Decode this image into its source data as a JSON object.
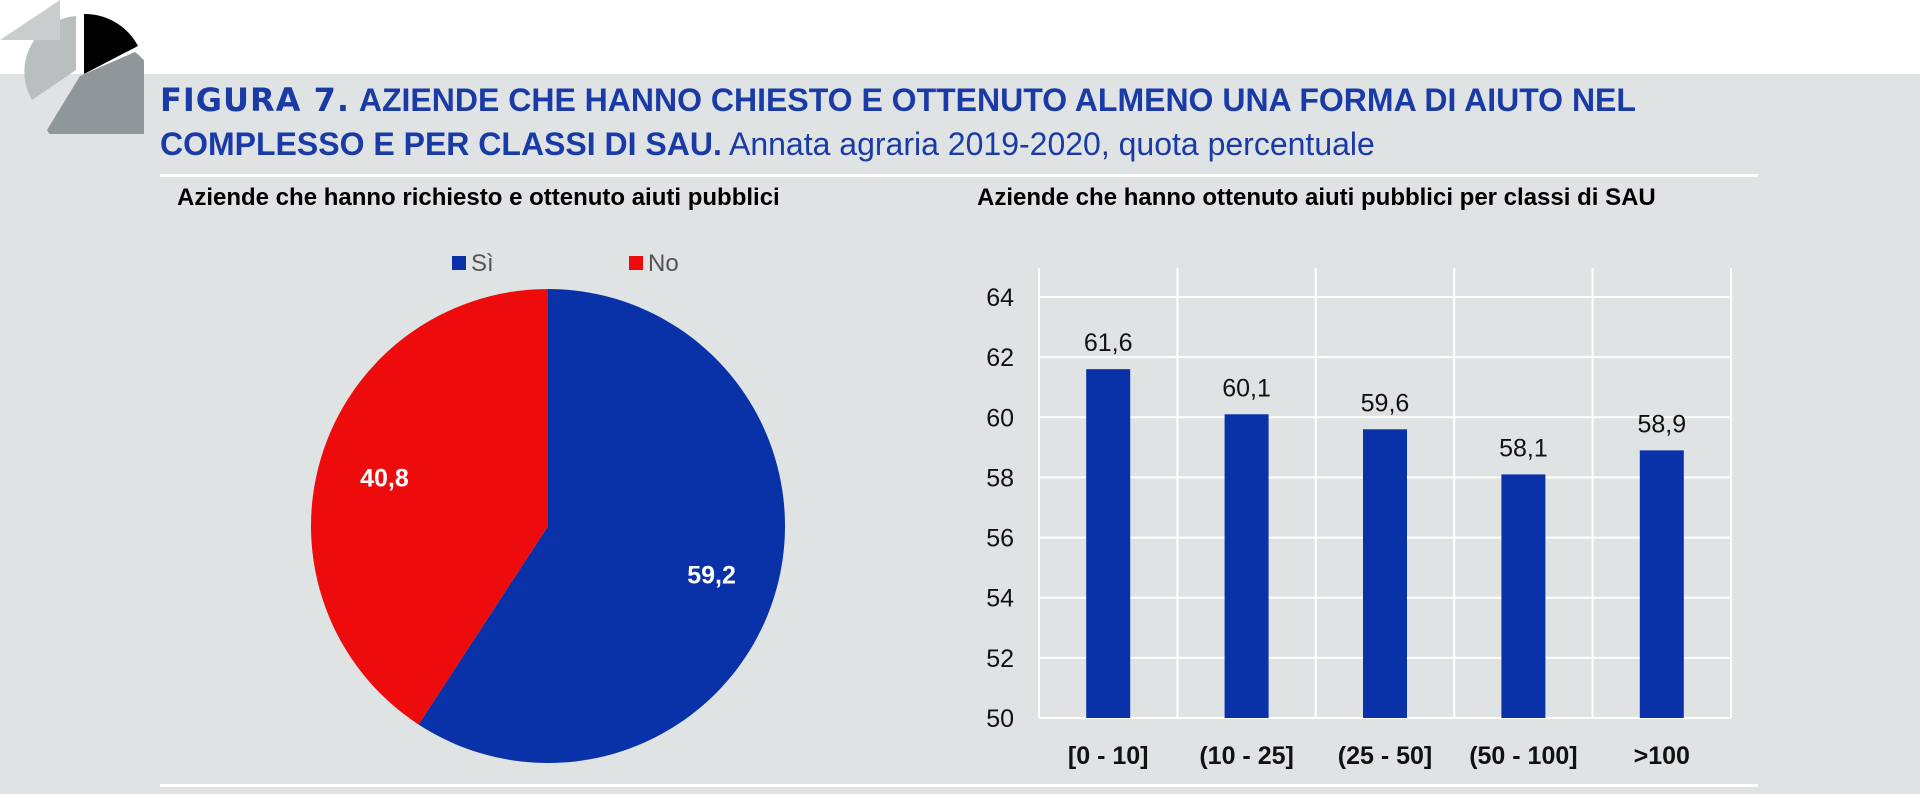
{
  "figure": {
    "label": "FIGURA 7.",
    "title": "AZIENDE CHE HANNO CHIESTO E OTTENUTO ALMENO UNA FORMA DI AIUTO NEL COMPLESSO E PER CLASSI DI SAU",
    "subtitle": "Annata agraria 2019-2020, quota percentuale"
  },
  "colors": {
    "blue": "#0a32a8",
    "red": "#ee0b0b",
    "title_blue": "#1a3aa6",
    "background": "#dfe3e4"
  },
  "chart_data": [
    {
      "type": "pie",
      "title": "Aziende che hanno richiesto e ottenuto aiuti pubblici",
      "legend_position": "top",
      "slices": [
        {
          "name": "Sì",
          "value": 59.2,
          "label": "59,2",
          "color": "#0a32a8"
        },
        {
          "name": "No",
          "value": 40.8,
          "label": "40,8",
          "color": "#ee0b0b"
        }
      ]
    },
    {
      "type": "bar",
      "title": "Aziende che hanno ottenuto aiuti pubblici per classi di SAU",
      "categories": [
        "[0 - 10]",
        "(10 - 25]",
        "(25 - 50]",
        "(50 - 100]",
        ">100"
      ],
      "values": [
        61.6,
        60.1,
        59.6,
        58.1,
        58.9
      ],
      "value_labels": [
        "61,6",
        "60,1",
        "59,6",
        "58,1",
        "58,9"
      ],
      "ylim": [
        50,
        64
      ],
      "yticks": [
        50,
        52,
        54,
        56,
        58,
        60,
        62,
        64
      ],
      "grid": true,
      "color": "#0a32a8"
    }
  ]
}
